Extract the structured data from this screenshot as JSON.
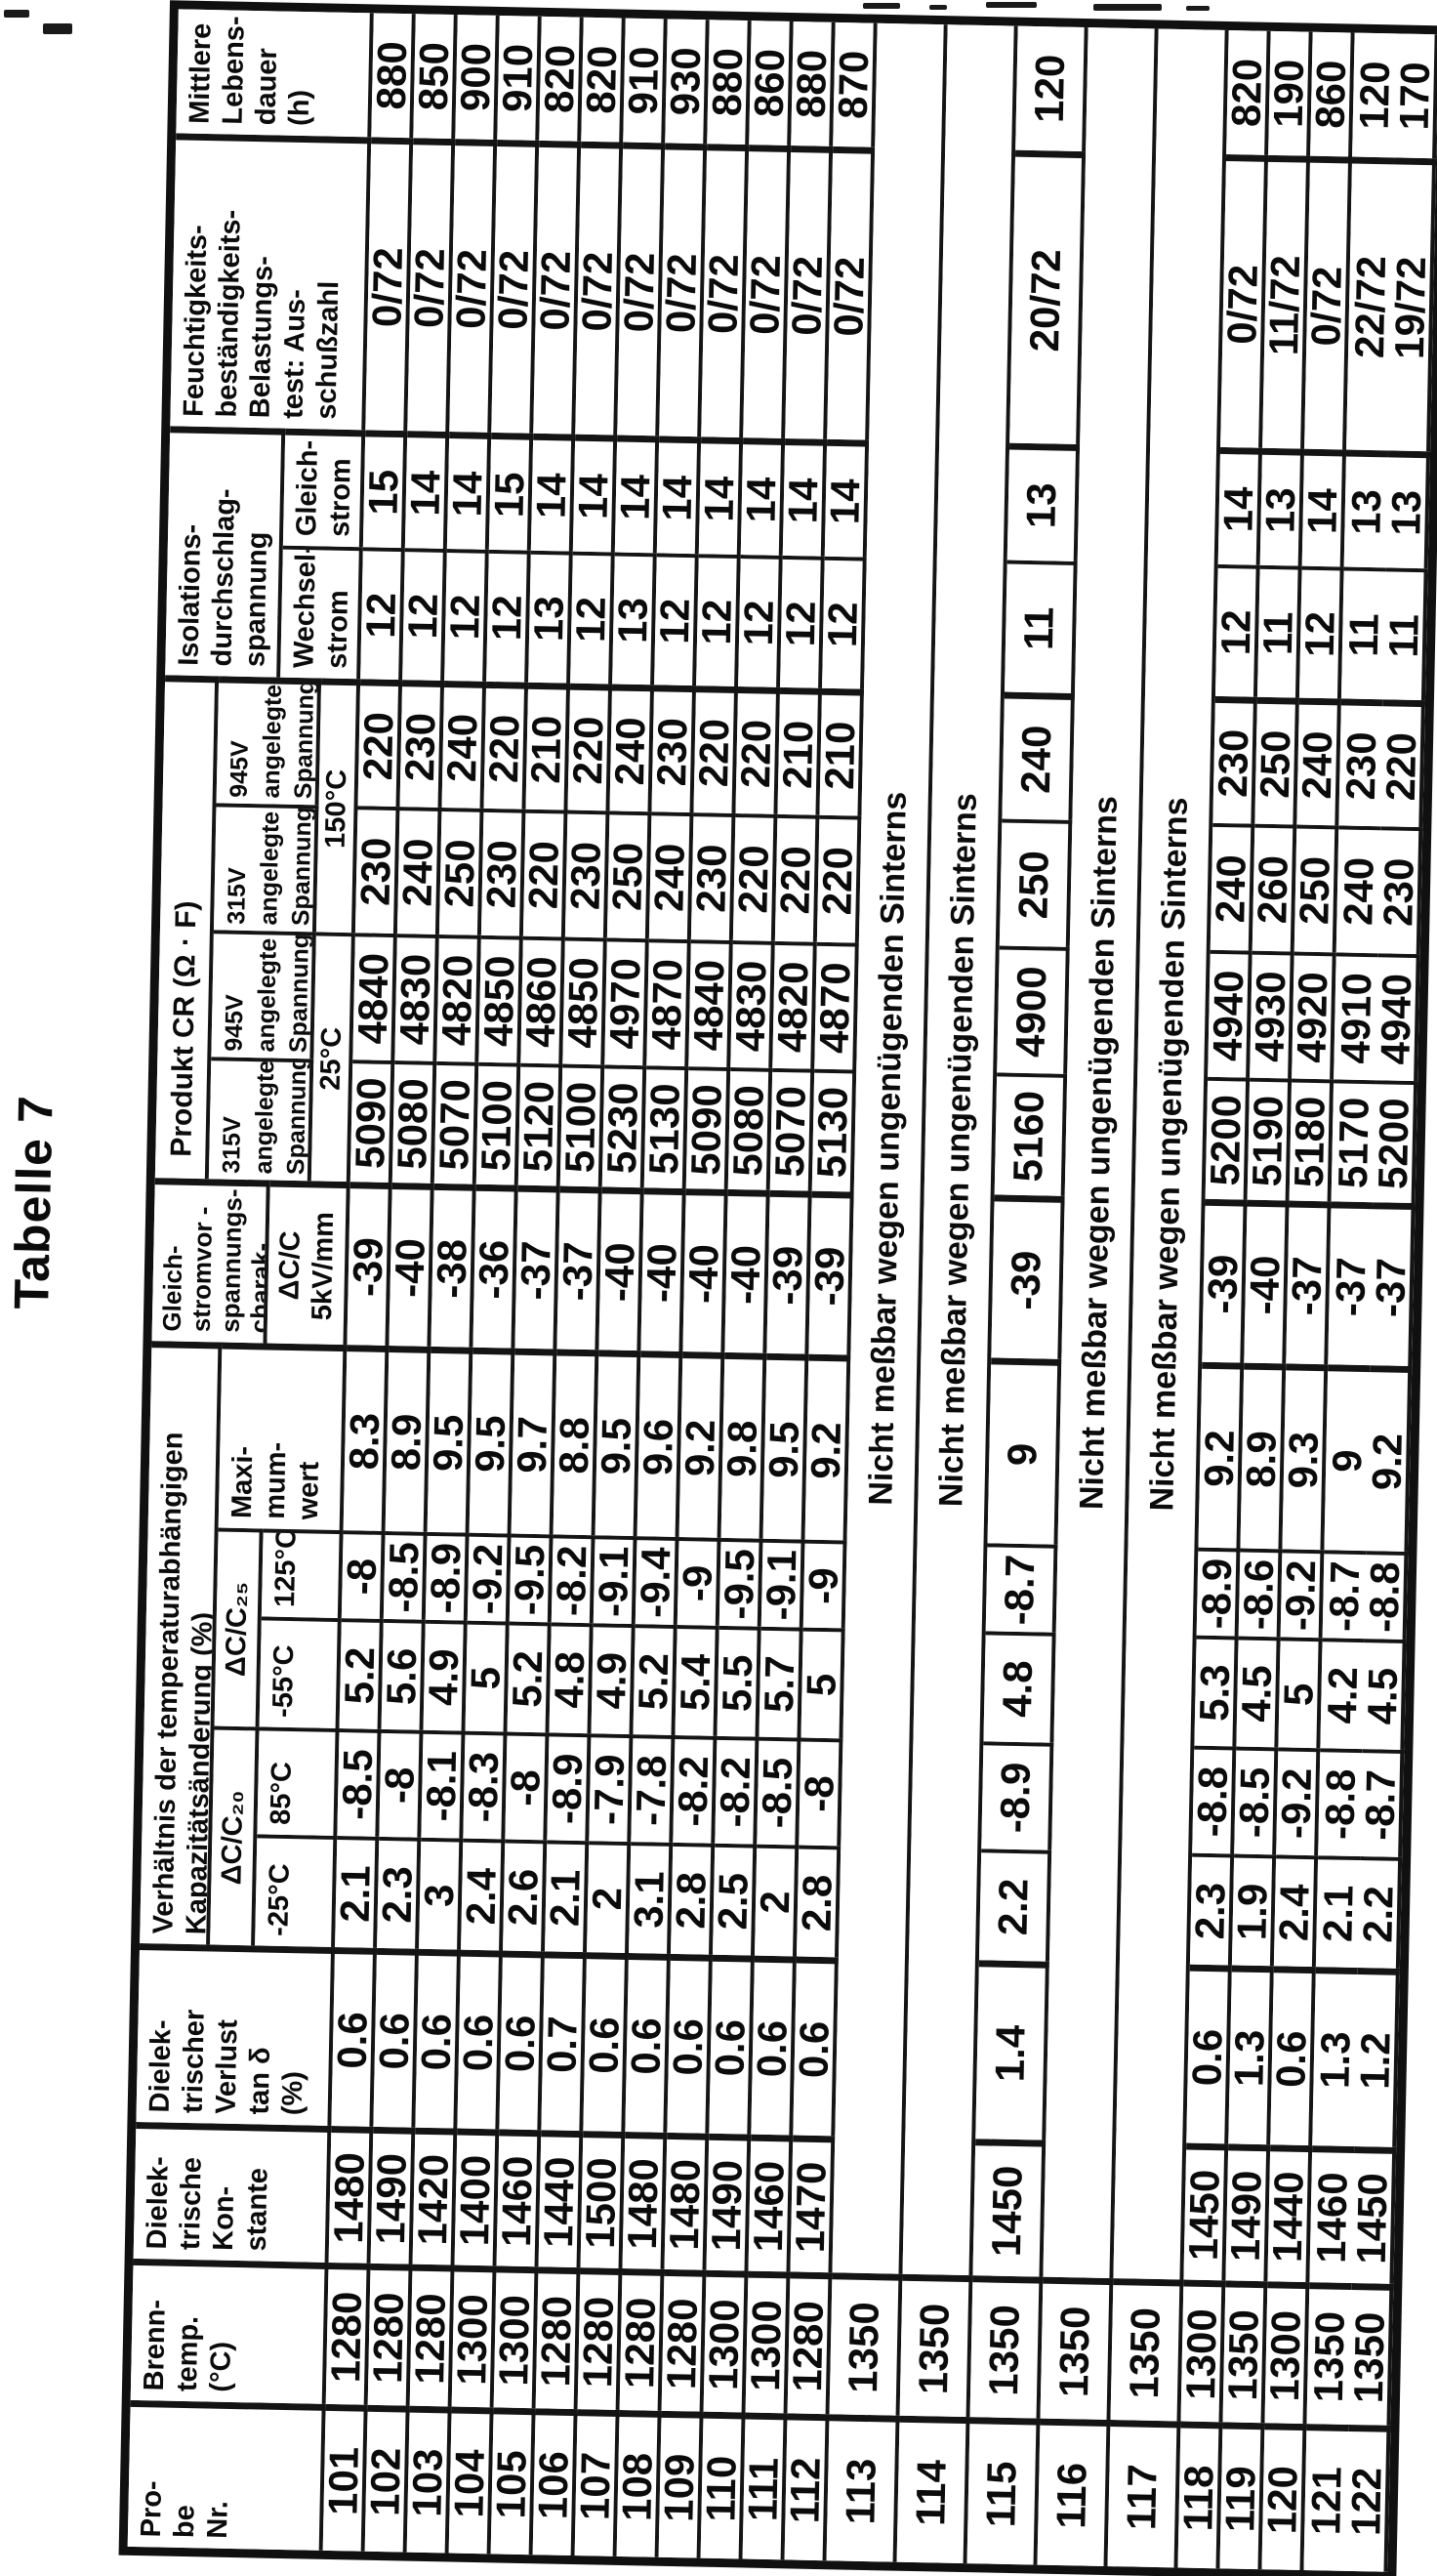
{
  "page": {
    "title": "Tabelle 7"
  },
  "table": {
    "headers": {
      "probe": "Pro-\nbe\nNr.",
      "brenntemp": "Brenn-\ntemp.\n(°C)",
      "konstante": "Dielek-\ntrische\nKon-\nstante",
      "tand": "Dielek-\ntrischer\nVerlust\ntan δ\n(%)",
      "verhaeltnis_title": "Verhältnis der temperaturabhängigen\nKapazitätsänderung (%)",
      "dcc20": "ΔC/C₂₀",
      "dcc25": "ΔC/C₂₅",
      "temp_m25": "-25°C",
      "temp_85": "85°C",
      "temp_m55": "-55°C",
      "temp_125": "125°C",
      "maximum": "Maxi-\nmum-\nwert",
      "gsv_title": "Gleich-\nstromvor -\nspannungs-\ncharak-\nteristik (%)",
      "gsv_sub": "ΔC/C\n5kV/mm",
      "cr_title": "Produkt CR (Ω · F)",
      "v315": "315V\nangelegte\nSpannung",
      "v945": "945V\nangelegte\nSpannung",
      "cr_25": "25°C",
      "cr_150": "150°C",
      "iso_title": "Isolations-\ndurchschlag-\nspannung\n(kV/mm)",
      "iso_wechsel": "Wechsel-\nstrom",
      "iso_gleich": "Gleich-\nstrom",
      "feucht": "Feuchtigkeits-\nbeständigkeits-\nBelastungs-\ntest: Aus-\nschußzahl",
      "lebensdauer": "Mittlere\nLebens-\ndauer\n(h)"
    },
    "not_measurable_text": "Nicht meßbar wegen ungenügenden Sinterns",
    "rows": [
      {
        "nr": "101",
        "values": [
          "1280",
          "1480",
          "0.6",
          "2.1",
          "-8.5",
          "5.2",
          "-8",
          "8.3",
          "-39",
          "5090",
          "4840",
          "230",
          "220",
          "12",
          "15",
          "0/72",
          "880"
        ]
      },
      {
        "nr": "102",
        "values": [
          "1280",
          "1490",
          "0.6",
          "2.3",
          "-8",
          "5.6",
          "-8.5",
          "8.9",
          "-40",
          "5080",
          "4830",
          "240",
          "230",
          "12",
          "14",
          "0/72",
          "850"
        ]
      },
      {
        "nr": "103",
        "values": [
          "1280",
          "1420",
          "0.6",
          "3",
          "-8.1",
          "4.9",
          "-8.9",
          "9.5",
          "-38",
          "5070",
          "4820",
          "250",
          "240",
          "12",
          "14",
          "0/72",
          "900"
        ]
      },
      {
        "nr": "104",
        "values": [
          "1300",
          "1400",
          "0.6",
          "2.4",
          "-8.3",
          "5",
          "-9.2",
          "9.5",
          "-36",
          "5100",
          "4850",
          "230",
          "220",
          "12",
          "15",
          "0/72",
          "910"
        ]
      },
      {
        "nr": "105",
        "values": [
          "1300",
          "1460",
          "0.6",
          "2.6",
          "-8",
          "5.2",
          "-9.5",
          "9.7",
          "-37",
          "5120",
          "4860",
          "220",
          "210",
          "13",
          "14",
          "0/72",
          "820"
        ]
      },
      {
        "nr": "106",
        "values": [
          "1280",
          "1440",
          "0.7",
          "2.1",
          "-8.9",
          "4.8",
          "-8.2",
          "8.8",
          "-37",
          "5100",
          "4850",
          "230",
          "220",
          "12",
          "14",
          "0/72",
          "820"
        ]
      },
      {
        "nr": "107",
        "values": [
          "1280",
          "1500",
          "0.6",
          "2",
          "-7.9",
          "4.9",
          "-9.1",
          "9.5",
          "-40",
          "5230",
          "4970",
          "250",
          "240",
          "13",
          "14",
          "0/72",
          "910"
        ]
      },
      {
        "nr": "108",
        "values": [
          "1280",
          "1480",
          "0.6",
          "3.1",
          "-7.8",
          "5.2",
          "-9.4",
          "9.6",
          "-40",
          "5130",
          "4870",
          "240",
          "230",
          "12",
          "14",
          "0/72",
          "930"
        ]
      },
      {
        "nr": "109",
        "values": [
          "1280",
          "1480",
          "0.6",
          "2.8",
          "-8.2",
          "5.4",
          "-9",
          "9.2",
          "-40",
          "5090",
          "4840",
          "230",
          "220",
          "12",
          "14",
          "0/72",
          "880"
        ]
      },
      {
        "nr": "110",
        "values": [
          "1300",
          "1490",
          "0.6",
          "2.5",
          "-8.2",
          "5.5",
          "-9.5",
          "9.8",
          "-40",
          "5080",
          "4830",
          "220",
          "220",
          "12",
          "14",
          "0/72",
          "860"
        ]
      },
      {
        "nr": "111",
        "values": [
          "1300",
          "1460",
          "0.6",
          "2",
          "-8.5",
          "5.7",
          "-9.1",
          "9.5",
          "-39",
          "5070",
          "4820",
          "220",
          "210",
          "12",
          "14",
          "0/72",
          "880"
        ]
      },
      {
        "nr": "112",
        "values": [
          "1280",
          "1470",
          "0.6",
          "2.8",
          "-8",
          "5",
          "-9",
          "9.2",
          "-39",
          "5130",
          "4870",
          "220",
          "210",
          "12",
          "14",
          "0/72",
          "870"
        ]
      },
      {
        "nr": "113",
        "brenntemp": "1350",
        "merged": true
      },
      {
        "nr": "114",
        "brenntemp": "1350",
        "merged": true
      },
      {
        "nr": "115",
        "values": [
          "1350",
          "1450",
          "1.4",
          "2.2",
          "-8.9",
          "4.8",
          "-8.7",
          "9",
          "-39",
          "5160",
          "4900",
          "250",
          "240",
          "11",
          "13",
          "20/72",
          "120"
        ]
      },
      {
        "nr": "116",
        "brenntemp": "1350",
        "merged": true
      },
      {
        "nr": "117",
        "brenntemp": "1350",
        "merged": true
      },
      {
        "nr": "118",
        "values": [
          "1300",
          "1450",
          "0.6",
          "2.3",
          "-8.8",
          "5.3",
          "-8.9",
          "9.2",
          "-39",
          "5200",
          "4940",
          "240",
          "230",
          "12",
          "14",
          "0/72",
          "820"
        ]
      },
      {
        "nr": "119",
        "values": [
          "1350",
          "1490",
          "1.3",
          "1.9",
          "-8.5",
          "4.5",
          "-8.6",
          "8.9",
          "-40",
          "5190",
          "4930",
          "260",
          "250",
          "11",
          "13",
          "11/72",
          "190"
        ]
      },
      {
        "nr": "120",
        "values": [
          "1300",
          "1440",
          "0.6",
          "2.4",
          "-9.2",
          "5",
          "-9.2",
          "9.3",
          "-37",
          "5180",
          "4920",
          "250",
          "240",
          "12",
          "14",
          "0/72",
          "860"
        ]
      },
      {
        "nr": "121",
        "values": [
          "1350",
          "1460",
          "1.3",
          "2.1",
          "-8.8",
          "4.2",
          "-8.7",
          "9",
          "-37",
          "5170",
          "4910",
          "240",
          "230",
          "11",
          "13",
          "22/72",
          "120"
        ]
      },
      {
        "nr": "122",
        "values": [
          "1350",
          "1450",
          "1.2",
          "2.2",
          "-8.7",
          "4.5",
          "-8.8",
          "9.2",
          "-37",
          "5200",
          "4940",
          "230",
          "220",
          "11",
          "13",
          "19/72",
          "170"
        ]
      }
    ]
  }
}
